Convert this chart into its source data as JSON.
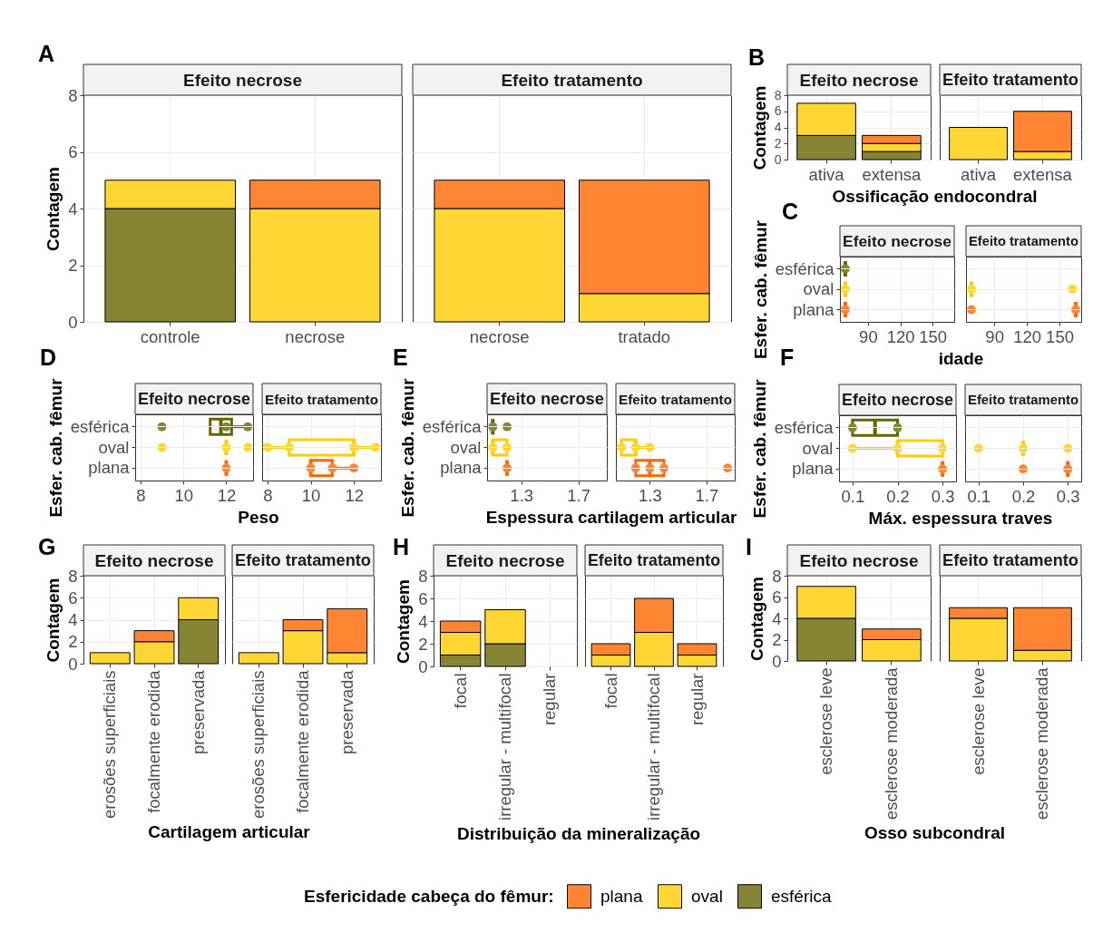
{
  "chart_data": [
    {
      "type": "bar",
      "stacked": true,
      "title": "Efeito necrose",
      "annotations": [
        "A"
      ],
      "ylabel": "Contagem",
      "categories": [
        "controle",
        "necrose"
      ],
      "series": [
        {
          "color": "#858533",
          "values": [
            4,
            null
          ]
        },
        {
          "color": "#ffd633",
          "values": [
            1,
            4
          ]
        },
        {
          "color": "#ff8533",
          "values": [
            null,
            1
          ]
        }
      ],
      "ylim": [
        0,
        8
      ],
      "yticks": [
        0,
        2,
        4,
        6,
        8
      ],
      "grid": true
    },
    {
      "type": "bar",
      "stacked": true,
      "title": "Efeito tratamento",
      "categories": [
        "necrose",
        "tratado"
      ],
      "series": [
        {
          "color": "#ffd633",
          "values": [
            4,
            1
          ]
        },
        {
          "color": "#ff8533",
          "values": [
            1,
            4
          ]
        }
      ],
      "ylim": [
        0,
        8
      ],
      "yticks": [
        0,
        2,
        4,
        6,
        8
      ],
      "grid": true,
      "tick_labels": "x"
    },
    {
      "type": "bar",
      "stacked": true,
      "title": "Efeito necrose",
      "annotations": [
        "B"
      ],
      "ylabel": "Contagem",
      "xlabel": "Ossificação endocondral",
      "categories": [
        "ativa",
        "extensa"
      ],
      "series": [
        {
          "color": "#858533",
          "values": [
            3,
            1
          ]
        },
        {
          "color": "#ffd633",
          "values": [
            4,
            1
          ]
        },
        {
          "color": "#ff8533",
          "values": [
            null,
            1
          ]
        }
      ],
      "ylim": [
        0,
        8
      ],
      "yticks": [
        0,
        2,
        4,
        6,
        8
      ],
      "grid": true
    },
    {
      "type": "bar",
      "stacked": true,
      "title": "Efeito tratamento",
      "categories": [
        "ativa",
        "extensa"
      ],
      "series": [
        {
          "color": "#ffd633",
          "values": [
            4,
            1
          ]
        },
        {
          "color": "#ff8533",
          "values": [
            null,
            5
          ]
        }
      ],
      "ylim": [
        0,
        8
      ],
      "yticks": [
        0,
        2,
        4,
        6,
        8
      ],
      "grid": true,
      "tick_labels": "x"
    },
    {
      "type": "box",
      "orientation": "horizontal",
      "title": "Efeito necrose",
      "annotations": [
        "C"
      ],
      "ylabel": "Esfer. cab. fêmur",
      "xlabel": "idade",
      "categories": [
        "esférica",
        "oval",
        "plana"
      ],
      "boxes": [
        {
          "low": 69,
          "q1": 69,
          "median": 69,
          "q3": 69,
          "high": 69
        },
        {
          "low": 69,
          "q1": 69,
          "median": 69,
          "q3": 69,
          "high": 69
        },
        {
          "low": 69,
          "q1": 69,
          "median": 69,
          "q3": 69,
          "high": 69
        }
      ],
      "colors": [
        "#666600",
        "#ffcc00",
        "#ff6600"
      ],
      "series": [
        {
          "type": "scatter",
          "color": "#858533",
          "x": [
            "esférica"
          ],
          "values": [
            69
          ]
        },
        {
          "type": "scatter",
          "color": "#ffd633",
          "x": [
            "oval"
          ],
          "values": [
            69
          ]
        },
        {
          "type": "scatter",
          "color": "#ff8533",
          "x": [
            "plana"
          ],
          "values": [
            69
          ]
        }
      ],
      "xlim": [
        64,
        170
      ],
      "xticks": [
        90,
        120,
        150
      ],
      "grid": true
    },
    {
      "type": "box",
      "orientation": "horizontal",
      "title": "Efeito tratamento",
      "categories": [
        "esférica",
        "oval",
        "plana"
      ],
      "boxes": [
        null,
        {
          "low": 69,
          "q1": 69,
          "median": 69,
          "q3": 69,
          "high": 69
        },
        {
          "low": 165,
          "q1": 165,
          "median": 165,
          "q3": 165,
          "high": 165
        }
      ],
      "colors": [
        null,
        "#ffcc00",
        "#ff6600"
      ],
      "series": [
        {
          "type": "scatter",
          "color": "#ffd633",
          "x": [
            "oval",
            "oval"
          ],
          "values": [
            69,
            162
          ]
        },
        {
          "type": "scatter",
          "color": "#ff8533",
          "x": [
            "plana",
            "plana"
          ],
          "values": [
            69,
            165
          ]
        }
      ],
      "xlim": [
        64,
        170
      ],
      "xticks": [
        90,
        120,
        150
      ],
      "grid": true,
      "tick_labels": "x"
    },
    {
      "type": "box",
      "orientation": "horizontal",
      "title": "Efeito necrose",
      "annotations": [
        "D"
      ],
      "ylabel": "Esfer. cab. fêmur",
      "xlabel": "Peso",
      "categories": [
        "esférica",
        "oval",
        "plana"
      ],
      "boxes": [
        {
          "low": 11.25,
          "q1": 11.25,
          "median": 11.75,
          "q3": 12.25,
          "high": 13
        },
        {
          "low": 12,
          "q1": 12,
          "median": 12,
          "q3": 12,
          "high": 12
        },
        {
          "low": 12,
          "q1": 12,
          "median": 12,
          "q3": 12,
          "high": 12
        }
      ],
      "colors": [
        "#666600",
        "#ffcc00",
        "#ff6600"
      ],
      "series": [
        {
          "type": "scatter",
          "color": "#858533",
          "x": [
            "esférica",
            "esférica",
            "esférica"
          ],
          "values": [
            9,
            12,
            13
          ]
        },
        {
          "type": "scatter",
          "color": "#ffd633",
          "x": [
            "oval",
            "oval",
            "oval"
          ],
          "values": [
            9,
            12,
            13
          ]
        },
        {
          "type": "scatter",
          "color": "#ff8533",
          "x": [
            "plana"
          ],
          "values": [
            12
          ]
        }
      ],
      "xlim": [
        7.75,
        13.25
      ],
      "xticks": [
        8,
        10,
        12
      ],
      "grid": true
    },
    {
      "type": "box",
      "orientation": "horizontal",
      "title": "Efeito tratamento",
      "categories": [
        "esférica",
        "oval",
        "plana"
      ],
      "boxes": [
        null,
        {
          "low": 8,
          "q1": 9,
          "median": 12,
          "q3": 12,
          "high": 13
        },
        {
          "low": 10,
          "q1": 10,
          "median": 10,
          "q3": 11,
          "high": 12
        }
      ],
      "colors": [
        null,
        "#ffcc00",
        "#ff6600"
      ],
      "series": [
        {
          "type": "scatter",
          "color": "#ffd633",
          "x": [
            "oval",
            "oval",
            "oval",
            "oval"
          ],
          "values": [
            8,
            9,
            12,
            13
          ]
        },
        {
          "type": "scatter",
          "color": "#ff8533",
          "x": [
            "plana",
            "plana",
            "plana"
          ],
          "values": [
            10,
            11,
            12
          ]
        }
      ],
      "xlim": [
        7.75,
        13.25
      ],
      "xticks": [
        8,
        10,
        12
      ],
      "grid": true,
      "tick_labels": "x"
    },
    {
      "type": "box",
      "orientation": "horizontal",
      "title": "Efeito necrose",
      "annotations": [
        "E"
      ],
      "ylabel": "Esfer. cab. fêmur",
      "xlabel": "Espessura cartilagem articular",
      "categories": [
        "esférica",
        "oval",
        "plana"
      ],
      "boxes": [
        {
          "low": 1.1,
          "q1": 1.1,
          "median": 1.1,
          "q3": 1.1,
          "high": 1.1
        },
        {
          "low": 1.1,
          "q1": 1.1,
          "median": 1.1,
          "q3": 1.2,
          "high": 1.2
        },
        {
          "low": 1.2,
          "q1": 1.2,
          "median": 1.2,
          "q3": 1.2,
          "high": 1.2
        }
      ],
      "colors": [
        "#666600",
        "#ffcc00",
        "#ff6600"
      ],
      "series": [
        {
          "type": "scatter",
          "color": "#858533",
          "x": [
            "esférica",
            "esférica"
          ],
          "values": [
            1.1,
            1.2
          ]
        },
        {
          "type": "scatter",
          "color": "#ffd633",
          "x": [
            "oval",
            "oval"
          ],
          "values": [
            1.1,
            1.2
          ]
        },
        {
          "type": "scatter",
          "color": "#ff8533",
          "x": [
            "plana"
          ],
          "values": [
            1.2
          ]
        }
      ],
      "xlim": [
        1.06,
        1.9
      ],
      "xticks": [
        1.3,
        1.7
      ],
      "grid": true
    },
    {
      "type": "box",
      "orientation": "horizontal",
      "title": "Efeito tratamento",
      "categories": [
        "esférica",
        "oval",
        "plana"
      ],
      "boxes": [
        null,
        {
          "low": 1.1,
          "q1": 1.1,
          "median": 1.2,
          "q3": 1.2,
          "high": 1.3
        },
        {
          "low": 1.2,
          "q1": 1.2,
          "median": 1.3,
          "q3": 1.4,
          "high": 1.4
        }
      ],
      "colors": [
        null,
        "#ffcc00",
        "#ff6600"
      ],
      "series": [
        {
          "type": "scatter",
          "color": "#ffd633",
          "x": [
            "oval",
            "oval",
            "oval"
          ],
          "values": [
            1.1,
            1.2,
            1.3
          ]
        },
        {
          "type": "scatter",
          "color": "#ff8533",
          "x": [
            "plana",
            "plana",
            "plana",
            "plana"
          ],
          "values": [
            1.2,
            1.3,
            1.4,
            1.85
          ]
        }
      ],
      "xlim": [
        1.06,
        1.9
      ],
      "xticks": [
        1.3,
        1.7
      ],
      "grid": true,
      "tick_labels": "x"
    },
    {
      "type": "box",
      "orientation": "horizontal",
      "title": "Efeito necrose",
      "annotations": [
        "F"
      ],
      "ylabel": "Esfer. cab. fêmur",
      "xlabel": "Máx. espessura traves",
      "categories": [
        "esférica",
        "oval",
        "plana"
      ],
      "boxes": [
        {
          "low": 0.1,
          "q1": 0.1,
          "median": 0.15,
          "q3": 0.2,
          "high": 0.2
        },
        {
          "low": 0.1,
          "q1": 0.2,
          "median": 0.2,
          "q3": 0.3,
          "high": 0.3
        },
        {
          "low": 0.3,
          "q1": 0.3,
          "median": 0.3,
          "q3": 0.3,
          "high": 0.3
        }
      ],
      "colors": [
        "#666600",
        "#ffcc00",
        "#ff6600"
      ],
      "series": [
        {
          "type": "scatter",
          "color": "#858533",
          "x": [
            "esférica",
            "esférica"
          ],
          "values": [
            0.1,
            0.2
          ]
        },
        {
          "type": "scatter",
          "color": "#ffd633",
          "x": [
            "oval",
            "oval",
            "oval"
          ],
          "values": [
            0.1,
            0.2,
            0.3
          ]
        },
        {
          "type": "scatter",
          "color": "#ff8533",
          "x": [
            "plana"
          ],
          "values": [
            0.3
          ]
        }
      ],
      "xlim": [
        0.07,
        0.33
      ],
      "xticks": [
        0.1,
        0.2,
        0.3
      ],
      "grid": true
    },
    {
      "type": "box",
      "orientation": "horizontal",
      "title": "Efeito tratamento",
      "categories": [
        "esférica",
        "oval",
        "plana"
      ],
      "boxes": [
        null,
        {
          "low": 0.2,
          "q1": 0.2,
          "median": 0.2,
          "q3": 0.2,
          "high": 0.2
        },
        {
          "low": 0.3,
          "q1": 0.3,
          "median": 0.3,
          "q3": 0.3,
          "high": 0.3
        }
      ],
      "colors": [
        null,
        "#ffcc00",
        "#ff6600"
      ],
      "series": [
        {
          "type": "scatter",
          "color": "#ffd633",
          "x": [
            "oval",
            "oval",
            "oval"
          ],
          "values": [
            0.1,
            0.2,
            0.3
          ]
        },
        {
          "type": "scatter",
          "color": "#ff8533",
          "x": [
            "plana",
            "plana"
          ],
          "values": [
            0.2,
            0.3
          ]
        }
      ],
      "xlim": [
        0.07,
        0.33
      ],
      "xticks": [
        0.1,
        0.2,
        0.3
      ],
      "grid": true,
      "tick_labels": "x"
    },
    {
      "type": "bar",
      "stacked": true,
      "title": "Efeito necrose",
      "annotations": [
        "G"
      ],
      "ylabel": "Contagem",
      "xlabel": "Cartilagem articular",
      "categories": [
        "erosões superficiais",
        "focalmente erodida",
        "preservada"
      ],
      "series": [
        {
          "color": "#858533",
          "values": [
            null,
            null,
            4
          ]
        },
        {
          "color": "#ffd633",
          "values": [
            1,
            2,
            2
          ]
        },
        {
          "color": "#ff8533",
          "values": [
            null,
            1,
            null
          ]
        }
      ],
      "ylim": [
        0,
        8
      ],
      "yticks": [
        0,
        2,
        4,
        6,
        8
      ],
      "grid": true
    },
    {
      "type": "bar",
      "stacked": true,
      "title": "Efeito tratamento",
      "categories": [
        "erosões superficiais",
        "focalmente erodida",
        "preservada"
      ],
      "series": [
        {
          "color": "#ffd633",
          "values": [
            1,
            3,
            1
          ]
        },
        {
          "color": "#ff8533",
          "values": [
            null,
            1,
            4
          ]
        }
      ],
      "ylim": [
        0,
        8
      ],
      "yticks": [
        0,
        2,
        4,
        6,
        8
      ],
      "grid": true,
      "tick_labels": "x"
    },
    {
      "type": "bar",
      "stacked": true,
      "title": "Efeito necrose",
      "annotations": [
        "H"
      ],
      "ylabel": "Contagem",
      "xlabel": "Distribuição da mineralização",
      "categories": [
        "focal",
        "irregular - multifocal",
        "regular"
      ],
      "series": [
        {
          "color": "#858533",
          "values": [
            1,
            2,
            null
          ]
        },
        {
          "color": "#ffd633",
          "values": [
            2,
            3,
            null
          ]
        },
        {
          "color": "#ff8533",
          "values": [
            1,
            null,
            null
          ]
        }
      ],
      "ylim": [
        0,
        8
      ],
      "yticks": [
        0,
        2,
        4,
        6,
        8
      ],
      "grid": true
    },
    {
      "type": "bar",
      "stacked": true,
      "title": "Efeito tratamento",
      "categories": [
        "focal",
        "irregular - multifocal",
        "regular"
      ],
      "series": [
        {
          "color": "#ffd633",
          "values": [
            1,
            3,
            1
          ]
        },
        {
          "color": "#ff8533",
          "values": [
            1,
            3,
            1
          ]
        }
      ],
      "ylim": [
        0,
        8
      ],
      "yticks": [
        0,
        2,
        4,
        6,
        8
      ],
      "grid": true,
      "tick_labels": "x"
    },
    {
      "type": "bar",
      "stacked": true,
      "title": "Efeito necrose",
      "annotations": [
        "I"
      ],
      "ylabel": "Contagem",
      "xlabel": "Osso subcondral",
      "categories": [
        "esclerose leve",
        "esclerose moderada"
      ],
      "series": [
        {
          "name": "esférica",
          "color": "#858533",
          "values": [
            4,
            null
          ]
        },
        {
          "name": "oval",
          "color": "#ffd633",
          "values": [
            3,
            2
          ]
        },
        {
          "name": "plana",
          "color": "#ff8533",
          "values": [
            null,
            1
          ]
        }
      ],
      "ylim": [
        0,
        8
      ],
      "yticks": [
        0,
        2,
        4,
        6,
        8
      ],
      "grid": true,
      "legend": "bottom",
      "legend_title": "Esfericidade cabeça do fêmur:"
    },
    {
      "type": "bar",
      "stacked": true,
      "title": "Efeito tratamento",
      "categories": [
        "esclerose leve",
        "esclerose moderada"
      ],
      "series": [
        {
          "color": "#ffd633",
          "values": [
            4,
            1
          ]
        },
        {
          "color": "#ff8533",
          "values": [
            1,
            4
          ]
        }
      ],
      "ylim": [
        0,
        8
      ],
      "yticks": [
        0,
        2,
        4,
        6,
        8
      ],
      "grid": true,
      "tick_labels": "x"
    }
  ]
}
